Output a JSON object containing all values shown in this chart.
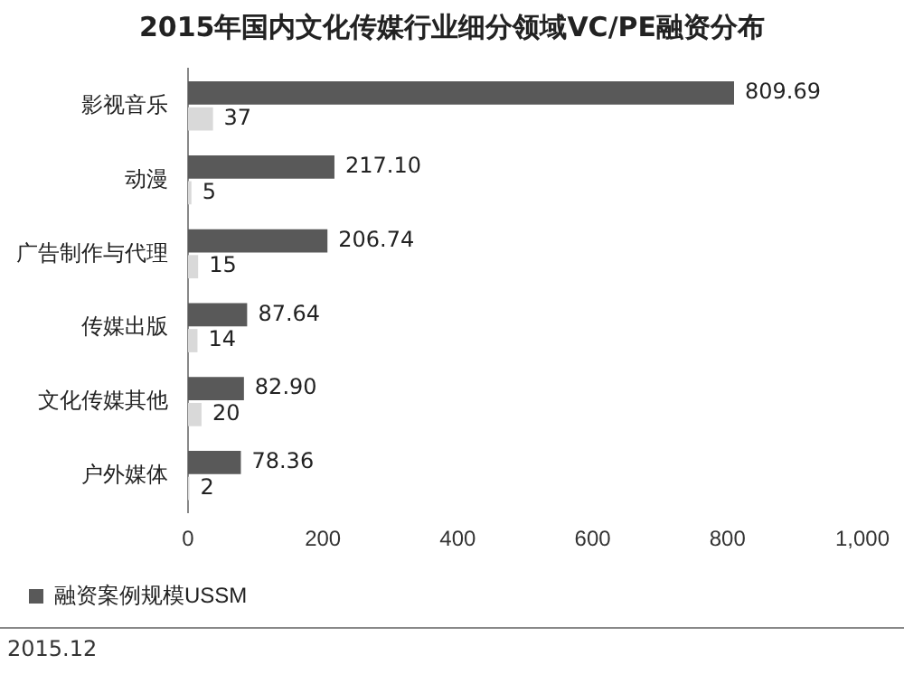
{
  "chart_data": {
    "type": "bar",
    "orientation": "horizontal",
    "title": "2015年国内文化传媒行业细分领域VC/PE融资分布",
    "categories": [
      "影视音乐",
      "动漫",
      "广告制作与代理",
      "传媒出版",
      "文化传媒其他",
      "户外媒体"
    ],
    "series": [
      {
        "name": "融资案例规模USSM",
        "color": "#595959",
        "values": [
          809.69,
          217.1,
          206.74,
          87.64,
          82.9,
          78.36
        ],
        "value_labels": [
          "809.69",
          "217.10",
          "206.74",
          "87.64",
          "82.90",
          "78.36"
        ]
      },
      {
        "color": "#d9d9d9",
        "values": [
          37,
          5,
          15,
          14,
          20,
          2
        ],
        "value_labels": [
          "37",
          "5",
          "15",
          "14",
          "20",
          "2"
        ]
      }
    ],
    "xlim": [
      0,
      1000
    ],
    "xticks": [
      0,
      200,
      400,
      600,
      800,
      {
        "value": 1000,
        "label": "1,000"
      }
    ],
    "grid": false,
    "legend": "bottom",
    "annotations": [
      "2015.12"
    ]
  }
}
